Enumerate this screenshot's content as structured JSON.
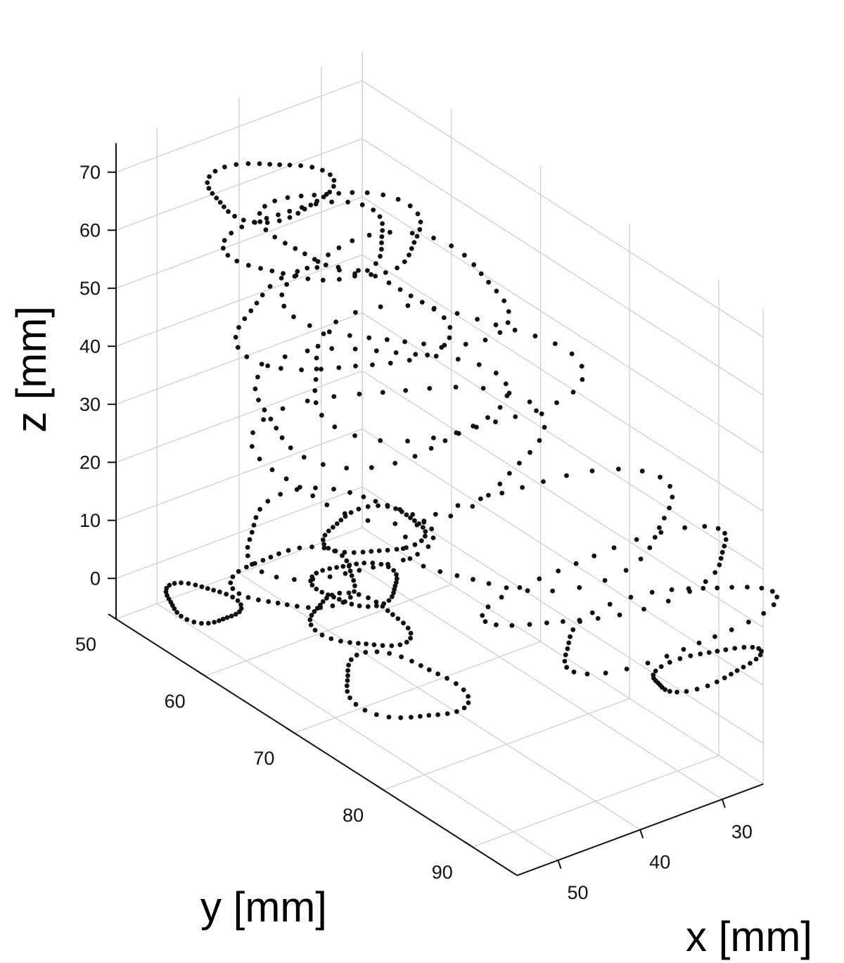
{
  "chart_data": {
    "type": "scatter",
    "projection": "3d",
    "xlabel": "x [mm]",
    "ylabel": "y [mm]",
    "zlabel": "z [mm]",
    "x_ticks": [
      "30",
      "40",
      "50"
    ],
    "y_ticks": [
      "50",
      "60",
      "70",
      "80",
      "90"
    ],
    "z_ticks": [
      "0",
      "10",
      "20",
      "30",
      "40",
      "50",
      "60",
      "70"
    ],
    "xlim": [
      25,
      55
    ],
    "ylim": [
      50,
      95
    ],
    "zlim": [
      -7,
      75
    ],
    "grid": true,
    "marker_color": "#111111",
    "contours": [
      {
        "z": -2,
        "x": 50,
        "y": 55,
        "rx": 3,
        "ry": 3
      },
      {
        "z": -6,
        "x": 42,
        "y": 70,
        "rx": 5,
        "ry": 5
      },
      {
        "z": 5,
        "x": 45,
        "y": 68,
        "rx": 4,
        "ry": 4
      },
      {
        "z": 10,
        "x": 48,
        "y": 64,
        "rx": 6,
        "ry": 4
      },
      {
        "z": 10,
        "x": 44,
        "y": 67,
        "rx": 4,
        "ry": 3
      },
      {
        "z": 12,
        "x": 29,
        "y": 92,
        "rx": 6,
        "ry": 2
      },
      {
        "z": 16,
        "x": 30,
        "y": 88,
        "rx": 12,
        "ry": 4
      },
      {
        "z": 17,
        "x": 45,
        "y": 65,
        "rx": 9,
        "ry": 6
      },
      {
        "z": 18,
        "x": 42,
        "y": 67,
        "rx": 5,
        "ry": 3
      },
      {
        "z": 22,
        "x": 32,
        "y": 85,
        "rx": 14,
        "ry": 4
      },
      {
        "z": 27,
        "x": 35,
        "y": 80,
        "rx": 14,
        "ry": 7
      },
      {
        "z": 35,
        "x": 42,
        "y": 70,
        "rx": 14,
        "ry": 9
      },
      {
        "z": 40,
        "x": 42,
        "y": 67,
        "rx": 12,
        "ry": 8
      },
      {
        "z": 46,
        "x": 38,
        "y": 70,
        "rx": 13,
        "ry": 9
      },
      {
        "z": 50,
        "x": 42,
        "y": 63,
        "rx": 10,
        "ry": 7
      },
      {
        "z": 56,
        "x": 38,
        "y": 66,
        "rx": 10,
        "ry": 8
      },
      {
        "z": 61,
        "x": 42,
        "y": 60,
        "rx": 8,
        "ry": 5
      },
      {
        "z": 64,
        "x": 40,
        "y": 62,
        "rx": 7,
        "ry": 6
      },
      {
        "z": 68,
        "x": 44,
        "y": 57,
        "rx": 6,
        "ry": 4
      }
    ]
  }
}
